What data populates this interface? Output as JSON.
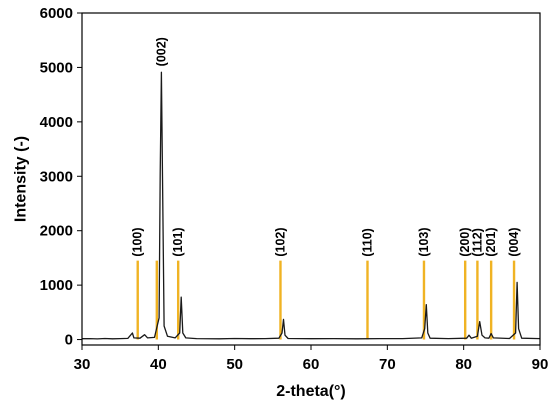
{
  "chart_data": {
    "type": "line",
    "title": "",
    "xlabel": "2-theta(°)",
    "ylabel": "Intensity (-)",
    "xlim": [
      30,
      90
    ],
    "ylim": [
      -100,
      6000
    ],
    "x_ticks": [
      30,
      40,
      50,
      60,
      70,
      80,
      90
    ],
    "y_ticks": [
      0,
      1000,
      2000,
      3000,
      4000,
      5000,
      6000
    ],
    "grid": false,
    "legend": "none",
    "colors": {
      "pattern": "#1a1a1a",
      "reference": "#f0b323",
      "axis": "#000000"
    },
    "series": [
      {
        "values": [
          [
            30,
            15
          ],
          [
            31,
            18
          ],
          [
            32,
            12
          ],
          [
            33,
            20
          ],
          [
            34,
            14
          ],
          [
            35,
            18
          ],
          [
            36,
            22
          ],
          [
            36.6,
            120
          ],
          [
            36.8,
            30
          ],
          [
            37.6,
            25
          ],
          [
            38.2,
            90
          ],
          [
            38.6,
            30
          ],
          [
            39.5,
            40
          ],
          [
            40.1,
            400
          ],
          [
            40.25,
            3050
          ],
          [
            40.4,
            4910
          ],
          [
            40.55,
            3000
          ],
          [
            40.75,
            250
          ],
          [
            41.2,
            60
          ],
          [
            42.2,
            30
          ],
          [
            42.8,
            120
          ],
          [
            43.0,
            780
          ],
          [
            43.2,
            120
          ],
          [
            43.6,
            30
          ],
          [
            45,
            18
          ],
          [
            48,
            14
          ],
          [
            50,
            20
          ],
          [
            52,
            15
          ],
          [
            54,
            18
          ],
          [
            55.8,
            25
          ],
          [
            56.2,
            120
          ],
          [
            56.4,
            370
          ],
          [
            56.6,
            80
          ],
          [
            57,
            20
          ],
          [
            60,
            16
          ],
          [
            63,
            18
          ],
          [
            66,
            14
          ],
          [
            69,
            17
          ],
          [
            72,
            18
          ],
          [
            74.5,
            30
          ],
          [
            74.9,
            200
          ],
          [
            75.1,
            640
          ],
          [
            75.3,
            120
          ],
          [
            75.6,
            25
          ],
          [
            78,
            18
          ],
          [
            80.4,
            25
          ],
          [
            80.7,
            80
          ],
          [
            81,
            25
          ],
          [
            81.8,
            60
          ],
          [
            82.1,
            330
          ],
          [
            82.4,
            80
          ],
          [
            82.8,
            30
          ],
          [
            83.3,
            25
          ],
          [
            83.6,
            110
          ],
          [
            83.9,
            30
          ],
          [
            86,
            20
          ],
          [
            86.8,
            120
          ],
          [
            87.0,
            1050
          ],
          [
            87.2,
            200
          ],
          [
            87.6,
            25
          ],
          [
            90,
            18
          ]
        ]
      }
    ],
    "reference_lines": [
      {
        "label": "(100)",
        "x": 37.3,
        "height": 1450
      },
      {
        "label": "",
        "x": 39.8,
        "height": 1450
      },
      {
        "label": "(101)",
        "x": 42.6,
        "height": 1450
      },
      {
        "label": "(102)",
        "x": 56.0,
        "height": 1450
      },
      {
        "label": "(110)",
        "x": 67.4,
        "height": 1450
      },
      {
        "label": "(103)",
        "x": 74.8,
        "height": 1450
      },
      {
        "label": "(200)",
        "x": 80.2,
        "height": 1450
      },
      {
        "label": "(112)",
        "x": 81.8,
        "height": 1450
      },
      {
        "label": "(201)",
        "x": 83.6,
        "height": 1450
      },
      {
        "label": "(004)",
        "x": 86.6,
        "height": 1450
      }
    ],
    "annotations": [
      {
        "text": "(002)",
        "x": 40.4,
        "y": 4910
      }
    ]
  }
}
